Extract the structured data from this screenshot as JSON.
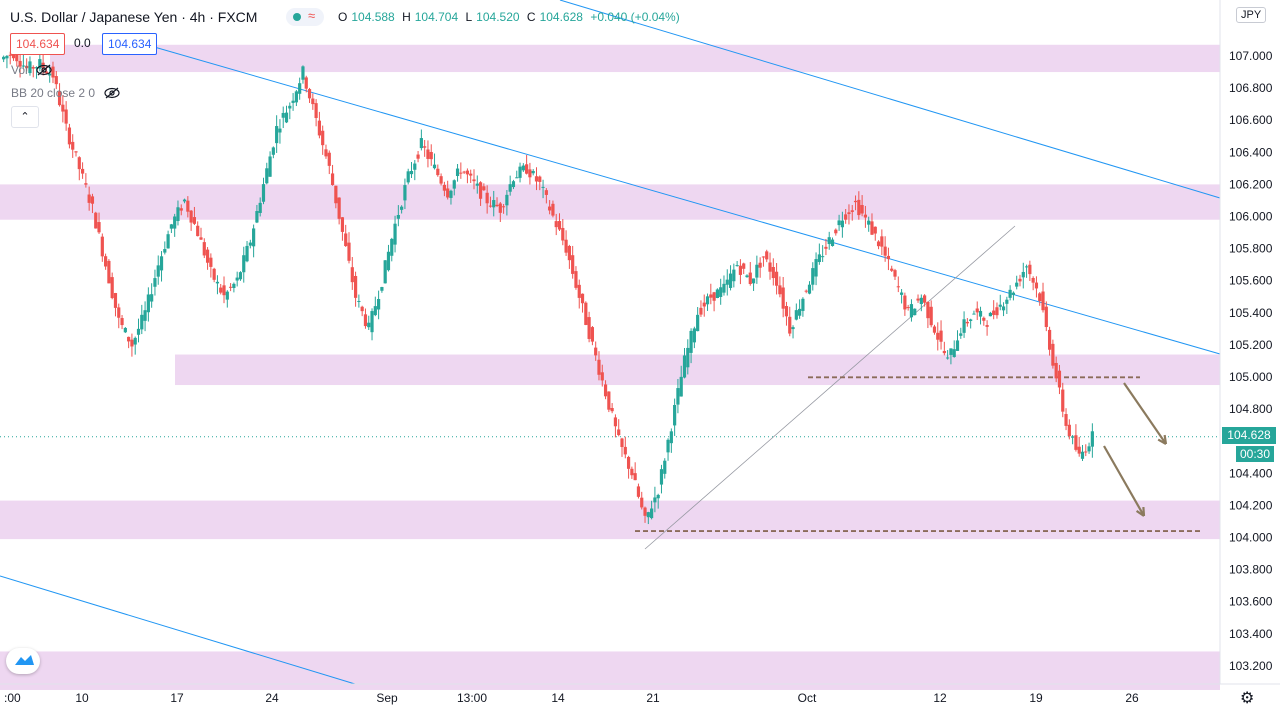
{
  "header": {
    "title": "U.S. Dollar / Japanese Yen · 4h · FXCM",
    "ohlc": [
      {
        "key": "O",
        "value": "104.588"
      },
      {
        "key": "H",
        "value": "104.704"
      },
      {
        "key": "L",
        "value": "104.520"
      },
      {
        "key": "C",
        "value": "104.628"
      }
    ],
    "change": "+0.040 (+0.04%)",
    "status_wave": "≈"
  },
  "quote": {
    "bid": "104.634",
    "spread": "0.0",
    "ask": "104.634"
  },
  "indicators": {
    "vol": "Vol",
    "bb": "BB 20 close 2 0"
  },
  "toolbar": {
    "collapse_glyph": "⌃",
    "currency": "JPY",
    "settings_glyph": "⚙"
  },
  "last_price": {
    "value": "104.628",
    "countdown": "00:30"
  },
  "colors": {
    "up": "#26a69a",
    "down": "#ef5350",
    "zone": "#ecd3f0",
    "trendline": "#2196f3",
    "support_dash": "#8b6b5a",
    "arrow": "#8b7a5e"
  },
  "chart_data": {
    "type": "candlestick",
    "title": "U.S. Dollar / Japanese Yen · 4h · FXCM",
    "xlabel": "",
    "ylabel": "",
    "ylim": [
      103.05,
      107.4
    ],
    "y_ticks": [
      "107.000",
      "106.800",
      "106.600",
      "106.400",
      "106.200",
      "106.000",
      "105.800",
      "105.600",
      "105.400",
      "105.200",
      "105.000",
      "104.800",
      "104.400",
      "104.200",
      "104.000",
      "103.800",
      "103.600",
      "103.400",
      "103.200"
    ],
    "x_ticks": [
      ":00",
      "10",
      "17",
      "24",
      "Sep",
      "13:00",
      "14",
      "21",
      "Oct",
      "12",
      "19",
      "26"
    ],
    "zones": [
      [
        106.9,
        107.07
      ],
      [
        105.98,
        106.2
      ],
      [
        104.95,
        105.14
      ],
      [
        103.99,
        104.23
      ],
      [
        103.05,
        103.29
      ]
    ],
    "horizontal_lines": [
      104.998,
      104.04
    ],
    "current_price": 104.628,
    "guide_points": [
      {
        "label": "",
        "values": [
          106.98,
          107.02,
          106.92,
          106.95,
          106.88,
          106.55,
          106.3,
          106.05,
          105.7,
          105.35,
          105.2,
          105.4,
          105.7,
          105.95,
          106.1,
          105.9,
          105.65,
          105.5,
          105.6,
          105.85,
          106.2,
          106.55,
          106.7,
          106.9,
          106.6,
          106.3,
          105.9,
          105.5,
          105.3,
          105.6,
          105.95,
          106.25,
          106.45,
          106.3,
          106.15,
          106.3,
          106.2,
          106.1,
          106.05,
          106.25,
          106.3,
          106.2,
          106.0,
          105.8,
          105.5,
          105.2,
          104.9,
          104.6,
          104.4,
          104.1,
          104.3,
          104.7,
          105.1,
          105.4,
          105.5,
          105.55,
          105.7,
          105.6,
          105.75,
          105.6,
          105.3,
          105.5,
          105.7,
          105.85,
          106.0,
          106.08,
          105.95,
          105.8,
          105.6,
          105.4,
          105.5,
          105.3,
          105.1,
          105.3,
          105.4,
          105.35,
          105.45,
          105.55,
          105.7,
          105.5,
          105.1,
          104.7,
          104.5,
          104.628
        ]
      }
    ]
  }
}
